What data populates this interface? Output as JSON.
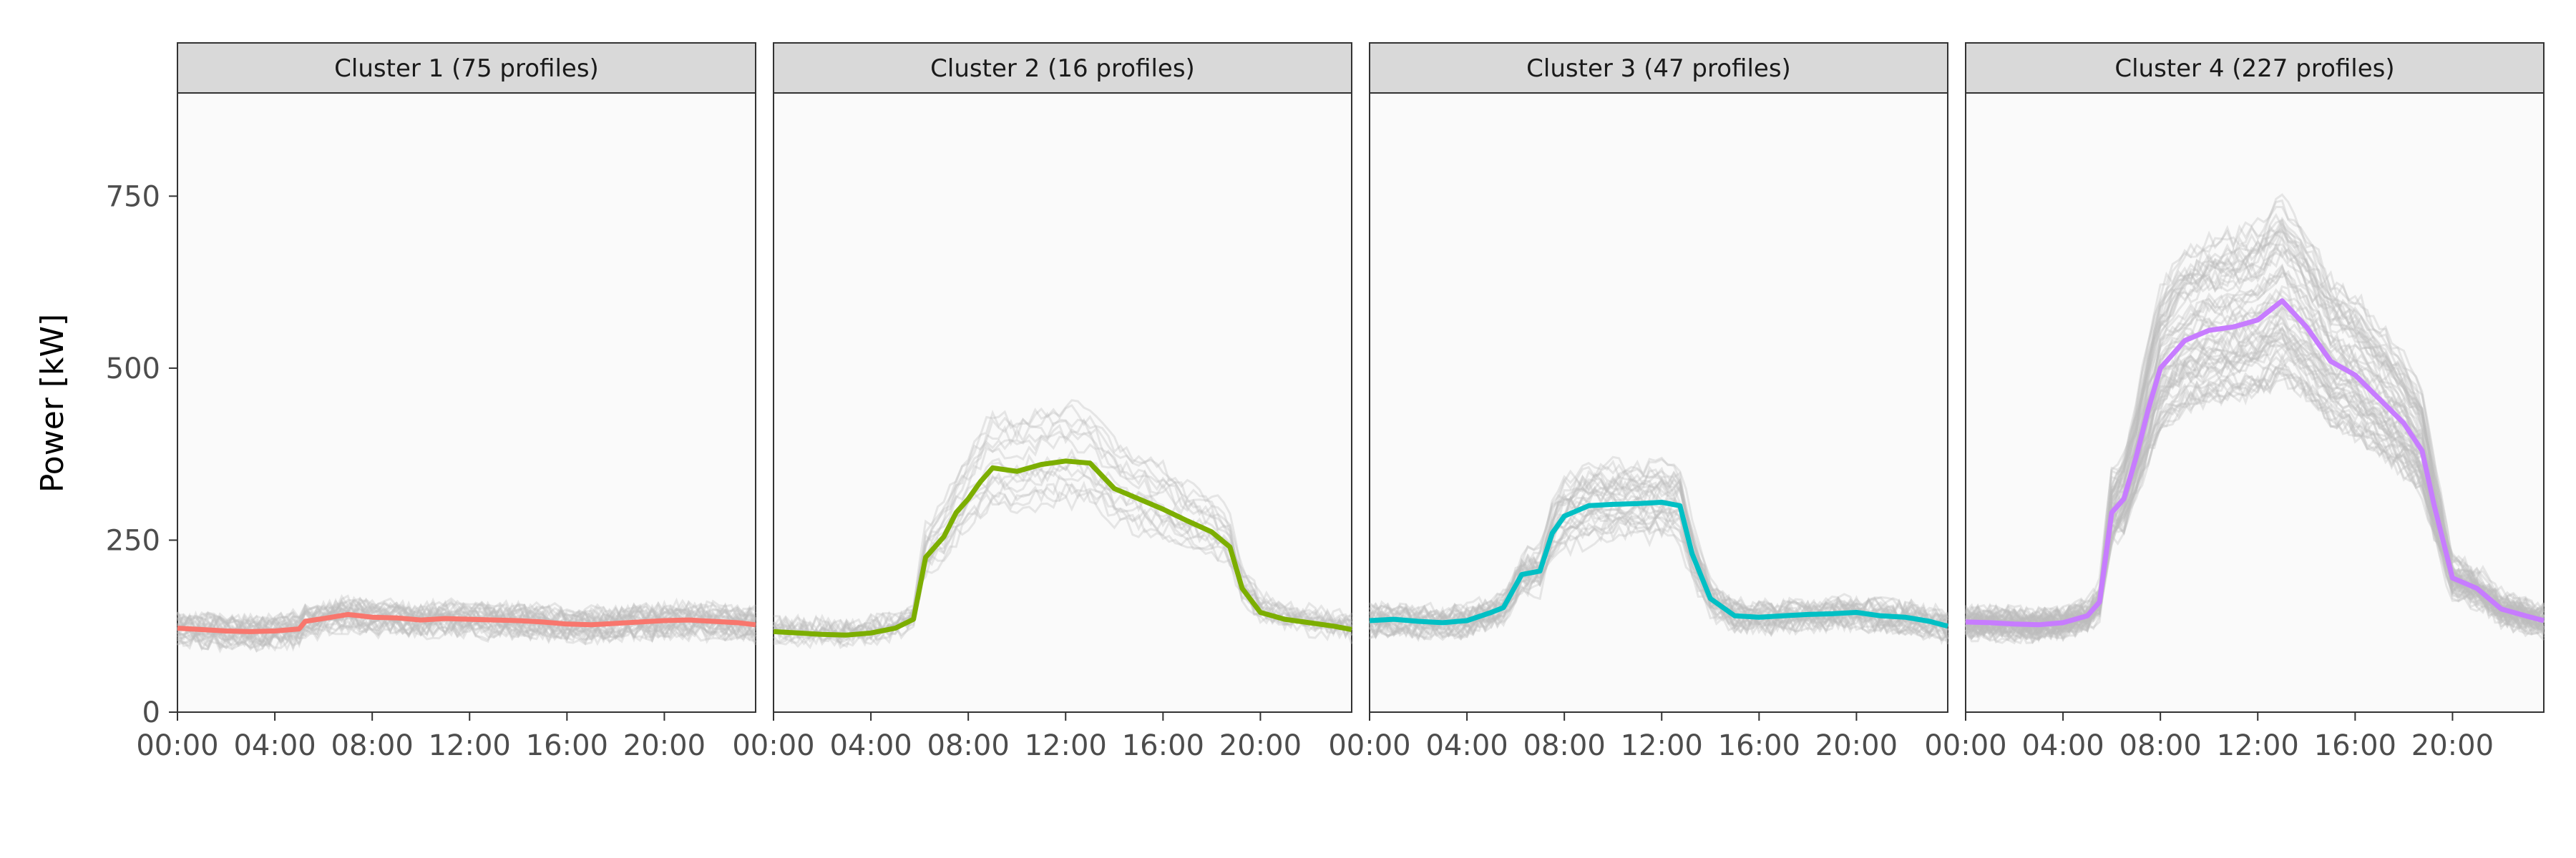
{
  "chart_data": {
    "type": "line",
    "ylabel": "Power [kW]",
    "xlabel": "",
    "ylim": [
      0,
      900
    ],
    "yticks": [
      0,
      250,
      500,
      750
    ],
    "ytick_labels": [
      "0",
      "250",
      "500",
      "750"
    ],
    "xlim": [
      0,
      23.75
    ],
    "xticks": [
      0,
      4,
      8,
      12,
      16,
      20
    ],
    "xtick_labels": [
      "00:00",
      "04:00",
      "08:00",
      "12:00",
      "16:00",
      "20:00"
    ],
    "background_profiles_color": "#bebebe",
    "panel_background": "#fafafa",
    "strip_background": "#d9d9d9",
    "panels": [
      {
        "title": "Cluster 1 (75 profiles)",
        "color": "#f8766d",
        "mean_hours": [
          0,
          1,
          2,
          3,
          4,
          5,
          5.25,
          6,
          7,
          8,
          9,
          10,
          11,
          12,
          13,
          14,
          15,
          16,
          17,
          18,
          19,
          20,
          21,
          22,
          23,
          23.75
        ],
        "mean_values": [
          122,
          120,
          118,
          117,
          118,
          121,
          132,
          136,
          142,
          138,
          137,
          134,
          136,
          135,
          134,
          133,
          131,
          128,
          127,
          129,
          131,
          133,
          134,
          132,
          130,
          127
        ],
        "profile_band_low": 105,
        "profile_band_high": 200,
        "profile_count_drawn": 30
      },
      {
        "title": "Cluster 2 (16 profiles)",
        "color": "#7cae00",
        "mean_hours": [
          0,
          1,
          2,
          3,
          4,
          5,
          5.75,
          6.25,
          7,
          7.5,
          8,
          8.5,
          9,
          10,
          11,
          12,
          13,
          14,
          15,
          16,
          17,
          18,
          18.75,
          19.25,
          20,
          21,
          22,
          23,
          23.75
        ],
        "mean_values": [
          117,
          115,
          113,
          112,
          115,
          122,
          135,
          225,
          255,
          290,
          310,
          335,
          355,
          350,
          360,
          365,
          362,
          325,
          310,
          295,
          278,
          262,
          240,
          180,
          145,
          135,
          130,
          125,
          120
        ],
        "profile_band_low": 270,
        "profile_band_high": 480,
        "profile_count_drawn": 16
      },
      {
        "title": "Cluster 3 (47 profiles)",
        "color": "#00bfc4",
        "mean_hours": [
          0,
          1,
          2,
          3,
          4,
          5,
          5.5,
          6.25,
          7,
          7.5,
          8,
          9,
          10,
          11,
          12,
          12.75,
          13.25,
          14,
          15,
          16,
          17,
          18,
          19,
          20,
          21,
          22,
          23,
          23.75
        ],
        "mean_values": [
          133,
          135,
          132,
          130,
          133,
          145,
          152,
          200,
          205,
          260,
          285,
          300,
          302,
          303,
          305,
          300,
          230,
          165,
          140,
          138,
          140,
          142,
          143,
          145,
          140,
          138,
          132,
          125
        ],
        "profile_band_low": 200,
        "profile_band_high": 480,
        "profile_count_drawn": 30
      },
      {
        "title": "Cluster 4 (227 profiles)",
        "color": "#c77cff",
        "mean_hours": [
          0,
          1,
          2,
          3,
          4,
          5,
          5.5,
          6,
          6.5,
          7,
          7.5,
          8,
          9,
          10,
          11,
          12,
          13,
          14,
          15,
          16,
          17,
          18,
          18.75,
          19.25,
          20,
          21,
          22,
          23,
          23.75
        ],
        "mean_values": [
          131,
          130,
          128,
          127,
          130,
          140,
          160,
          290,
          310,
          370,
          440,
          500,
          540,
          555,
          560,
          570,
          598,
          560,
          510,
          490,
          455,
          420,
          380,
          300,
          195,
          180,
          150,
          140,
          133
        ],
        "profile_band_low": 420,
        "profile_band_high": 790,
        "profile_count_drawn": 60
      }
    ]
  }
}
